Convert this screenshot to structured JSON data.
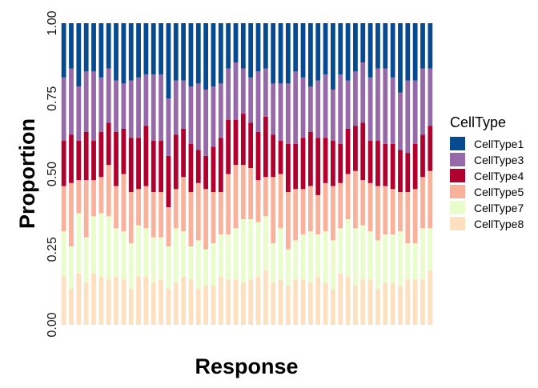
{
  "chart_data": {
    "type": "bar",
    "stacked": true,
    "xlabel": "Response",
    "ylabel": "Proportion",
    "ylim": [
      0,
      1
    ],
    "yticks": [
      "0.00",
      "0.25",
      "0.50",
      "0.75",
      "1.00"
    ],
    "ytick_values": [
      0,
      0.25,
      0.5,
      0.75,
      1.0
    ],
    "grid": false,
    "legend": {
      "title": "CellType",
      "position": "right"
    },
    "n_bars": 50,
    "bar_fill": "#d6dde8",
    "series": [
      {
        "name": "CellType8",
        "color": "#fde0c0",
        "values": [
          0.16,
          0.12,
          0.17,
          0.14,
          0.17,
          0.16,
          0.15,
          0.16,
          0.15,
          0.12,
          0.16,
          0.16,
          0.14,
          0.15,
          0.12,
          0.14,
          0.16,
          0.15,
          0.12,
          0.13,
          0.13,
          0.16,
          0.15,
          0.15,
          0.14,
          0.15,
          0.16,
          0.18,
          0.14,
          0.15,
          0.13,
          0.15,
          0.15,
          0.14,
          0.16,
          0.14,
          0.12,
          0.17,
          0.16,
          0.13,
          0.15,
          0.15,
          0.12,
          0.14,
          0.14,
          0.13,
          0.15,
          0.15,
          0.15,
          0.18
        ]
      },
      {
        "name": "CellType7",
        "color": "#e9fccc",
        "values": [
          0.15,
          0.14,
          0.2,
          0.15,
          0.19,
          0.21,
          0.21,
          0.16,
          0.16,
          0.15,
          0.17,
          0.16,
          0.15,
          0.14,
          0.14,
          0.18,
          0.15,
          0.11,
          0.16,
          0.12,
          0.14,
          0.14,
          0.15,
          0.17,
          0.21,
          0.2,
          0.18,
          0.18,
          0.13,
          0.17,
          0.12,
          0.13,
          0.15,
          0.17,
          0.14,
          0.17,
          0.16,
          0.15,
          0.19,
          0.19,
          0.18,
          0.16,
          0.16,
          0.16,
          0.16,
          0.18,
          0.12,
          0.12,
          0.17,
          0.14
        ]
      },
      {
        "name": "CellType5",
        "color": "#f8b19a",
        "values": [
          0.15,
          0.21,
          0.11,
          0.19,
          0.12,
          0.12,
          0.17,
          0.14,
          0.19,
          0.17,
          0.12,
          0.14,
          0.15,
          0.15,
          0.13,
          0.13,
          0.18,
          0.18,
          0.19,
          0.2,
          0.17,
          0.14,
          0.2,
          0.21,
          0.18,
          0.17,
          0.14,
          0.13,
          0.22,
          0.18,
          0.19,
          0.17,
          0.15,
          0.15,
          0.13,
          0.16,
          0.18,
          0.15,
          0.15,
          0.19,
          0.15,
          0.16,
          0.18,
          0.16,
          0.15,
          0.13,
          0.17,
          0.18,
          0.17,
          0.19
        ]
      },
      {
        "name": "CellType4",
        "color": "#b0002e",
        "values": [
          0.15,
          0.16,
          0.13,
          0.16,
          0.13,
          0.15,
          0.14,
          0.18,
          0.15,
          0.18,
          0.17,
          0.2,
          0.17,
          0.17,
          0.17,
          0.18,
          0.16,
          0.16,
          0.11,
          0.11,
          0.15,
          0.18,
          0.18,
          0.15,
          0.17,
          0.15,
          0.16,
          0.2,
          0.14,
          0.11,
          0.16,
          0.15,
          0.17,
          0.18,
          0.19,
          0.15,
          0.15,
          0.13,
          0.15,
          0.15,
          0.19,
          0.14,
          0.15,
          0.14,
          0.15,
          0.14,
          0.13,
          0.15,
          0.14,
          0.15
        ]
      },
      {
        "name": "CellType3",
        "color": "#9669a8",
        "values": [
          0.21,
          0.22,
          0.18,
          0.2,
          0.23,
          0.18,
          0.18,
          0.17,
          0.15,
          0.19,
          0.2,
          0.17,
          0.22,
          0.22,
          0.19,
          0.18,
          0.16,
          0.19,
          0.22,
          0.22,
          0.2,
          0.18,
          0.17,
          0.19,
          0.15,
          0.15,
          0.2,
          0.16,
          0.17,
          0.19,
          0.2,
          0.24,
          0.2,
          0.15,
          0.19,
          0.21,
          0.17,
          0.23,
          0.16,
          0.18,
          0.2,
          0.21,
          0.24,
          0.25,
          0.22,
          0.19,
          0.24,
          0.21,
          0.22,
          0.19
        ]
      },
      {
        "name": "CellType1",
        "color": "#084a8f",
        "values": [
          0.18,
          0.15,
          0.21,
          0.16,
          0.16,
          0.18,
          0.15,
          0.19,
          0.2,
          0.19,
          0.18,
          0.17,
          0.17,
          0.17,
          0.25,
          0.19,
          0.19,
          0.21,
          0.2,
          0.22,
          0.21,
          0.2,
          0.15,
          0.13,
          0.15,
          0.18,
          0.16,
          0.15,
          0.2,
          0.2,
          0.2,
          0.16,
          0.18,
          0.21,
          0.19,
          0.17,
          0.22,
          0.17,
          0.19,
          0.16,
          0.13,
          0.18,
          0.15,
          0.15,
          0.18,
          0.23,
          0.19,
          0.19,
          0.15,
          0.15
        ]
      }
    ],
    "legend_order": [
      "CellType1",
      "CellType3",
      "CellType4",
      "CellType5",
      "CellType7",
      "CellType8"
    ]
  }
}
